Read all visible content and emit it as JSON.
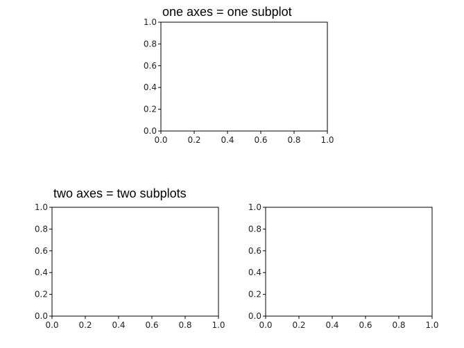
{
  "annotations": {
    "top": "one axes = one subplot",
    "bottom": "two axes = two subplots"
  },
  "colors": {
    "axis": "#000000",
    "background": "#ffffff",
    "text": "#222222"
  },
  "chart_data": [
    {
      "type": "line",
      "title": "",
      "xlabel": "",
      "ylabel": "",
      "xlim": [
        0.0,
        1.0
      ],
      "ylim": [
        0.0,
        1.0
      ],
      "xticks": [
        0.0,
        0.2,
        0.4,
        0.6,
        0.8,
        1.0
      ],
      "yticks": [
        0.0,
        0.2,
        0.4,
        0.6,
        0.8,
        1.0
      ],
      "xtick_labels": [
        "0.0",
        "0.2",
        "0.4",
        "0.6",
        "0.8",
        "1.0"
      ],
      "ytick_labels": [
        "0.0",
        "0.2",
        "0.4",
        "0.6",
        "0.8",
        "1.0"
      ],
      "series": [],
      "grid": false
    },
    {
      "type": "line",
      "title": "",
      "xlabel": "",
      "ylabel": "",
      "xlim": [
        0.0,
        1.0
      ],
      "ylim": [
        0.0,
        1.0
      ],
      "xticks": [
        0.0,
        0.2,
        0.4,
        0.6,
        0.8,
        1.0
      ],
      "yticks": [
        0.0,
        0.2,
        0.4,
        0.6,
        0.8,
        1.0
      ],
      "xtick_labels": [
        "0.0",
        "0.2",
        "0.4",
        "0.6",
        "0.8",
        "1.0"
      ],
      "ytick_labels": [
        "0.0",
        "0.2",
        "0.4",
        "0.6",
        "0.8",
        "1.0"
      ],
      "series": [],
      "grid": false
    },
    {
      "type": "line",
      "title": "",
      "xlabel": "",
      "ylabel": "",
      "xlim": [
        0.0,
        1.0
      ],
      "ylim": [
        0.0,
        1.0
      ],
      "xticks": [
        0.0,
        0.2,
        0.4,
        0.6,
        0.8,
        1.0
      ],
      "yticks": [
        0.0,
        0.2,
        0.4,
        0.6,
        0.8,
        1.0
      ],
      "xtick_labels": [
        "0.0",
        "0.2",
        "0.4",
        "0.6",
        "0.8",
        "1.0"
      ],
      "ytick_labels": [
        "0.0",
        "0.2",
        "0.4",
        "0.6",
        "0.8",
        "1.0"
      ],
      "series": [],
      "grid": false
    }
  ]
}
